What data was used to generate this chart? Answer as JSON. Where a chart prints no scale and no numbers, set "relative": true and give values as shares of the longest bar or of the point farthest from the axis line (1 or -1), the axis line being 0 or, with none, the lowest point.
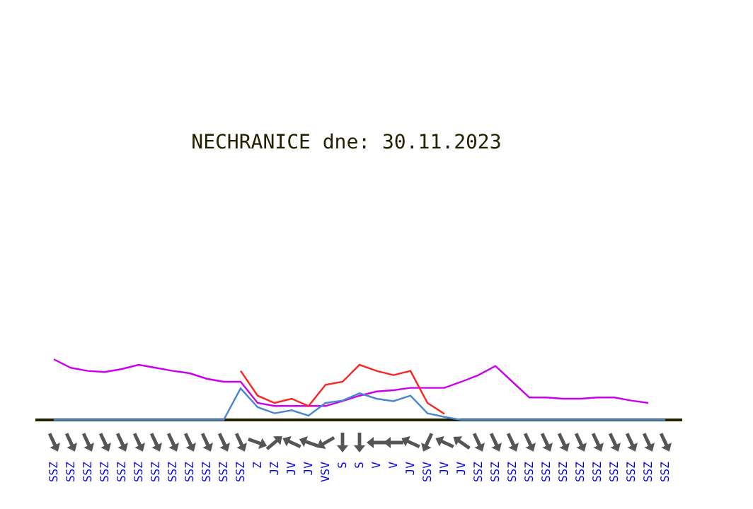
{
  "chart_data": {
    "type": "line",
    "title": "NECHRANICE dne: 30.11.2023",
    "relative": true,
    "grid": false,
    "marker": "none",
    "categories": [
      "SSZ",
      "SSZ",
      "SSZ",
      "SSZ",
      "SSZ",
      "SSZ",
      "SSZ",
      "SSZ",
      "SSZ",
      "SSZ",
      "SSZ",
      "SSZ",
      "Z",
      "JZ",
      "JV",
      "JV",
      "VSV",
      "S",
      "S",
      "V",
      "V",
      "JV",
      "SSV",
      "JV",
      "JV",
      "SSZ",
      "SSZ",
      "SSZ",
      "SSZ",
      "SSZ",
      "SSZ",
      "SSZ",
      "SSZ",
      "SSZ",
      "SSZ",
      "SSZ",
      "SSZ"
    ],
    "series": [
      {
        "color": "#cc00ee",
        "values": [
          1,
          0.86,
          0.81,
          0.79,
          0.84,
          0.91,
          0.86,
          0.81,
          0.77,
          0.68,
          0.63,
          0.63,
          0.28,
          0.23,
          0.23,
          0.23,
          0.23,
          0.31,
          0.4,
          0.47,
          0.49,
          0.53,
          0.53,
          0.53,
          0.63,
          0.74,
          0.89,
          0.63,
          0.37,
          0.37,
          0.35,
          0.35,
          0.37,
          0.37,
          0.32,
          0.28,
          null
        ]
      },
      {
        "color": "#ff2020",
        "values": [
          null,
          null,
          null,
          null,
          null,
          null,
          null,
          null,
          null,
          null,
          null,
          0.81,
          0.4,
          0.28,
          0.35,
          0.23,
          0.58,
          0.63,
          0.91,
          0.81,
          0.74,
          0.81,
          0.28,
          0.1,
          null,
          null,
          null,
          null,
          null,
          null,
          null,
          null,
          null,
          null,
          null,
          null,
          null
        ]
      },
      {
        "color": "#4a86d0",
        "values": [
          0,
          0,
          0,
          0,
          0,
          0,
          0,
          0,
          0,
          0,
          0,
          0.52,
          0.21,
          0.11,
          0.16,
          0.07,
          0.28,
          0.32,
          0.44,
          0.35,
          0.31,
          0.4,
          0.11,
          0.05,
          0,
          0,
          0,
          0,
          0,
          0,
          0,
          0,
          0,
          0,
          0,
          0,
          0
        ]
      }
    ]
  }
}
